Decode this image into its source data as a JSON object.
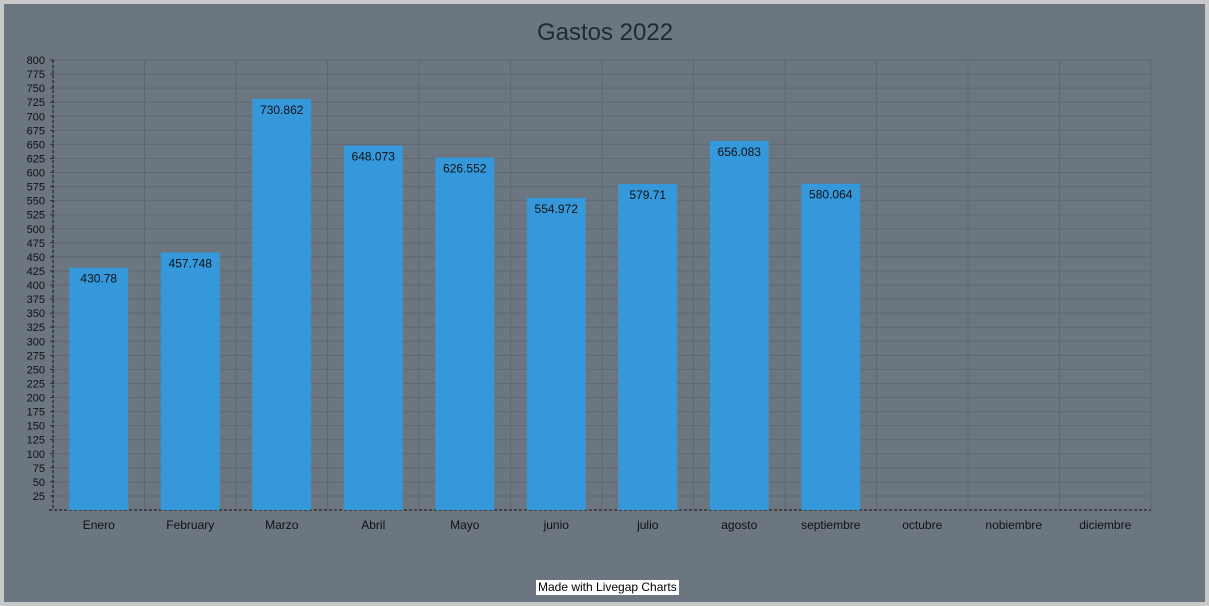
{
  "chart_data": {
    "type": "bar",
    "title": "Gastos 2022",
    "xlabel": "",
    "ylabel": "",
    "categories": [
      "Enero",
      "February",
      "Marzo",
      "Abril",
      "Mayo",
      "junio",
      "julio",
      "agosto",
      "septiembre",
      "octubre",
      "nobiembre",
      "diciembre"
    ],
    "values": [
      430.78,
      457.748,
      730.862,
      648.073,
      626.552,
      554.972,
      579.71,
      656.083,
      580.064,
      null,
      null,
      null
    ],
    "value_labels": [
      "430.78",
      "457.748",
      "730.862",
      "648.073",
      "626.552",
      "554.972",
      "579.71",
      "656.083",
      "580.064",
      "",
      "",
      ""
    ],
    "ylim": [
      0,
      800
    ],
    "y_tick_step": 25,
    "grid": true,
    "bar_color": "#3498db"
  },
  "colors": {
    "background": "#6c7680",
    "grid": "#5f6871",
    "text": "#111111",
    "title": "#1f2a33"
  },
  "watermark": "Made with Livegap Charts"
}
